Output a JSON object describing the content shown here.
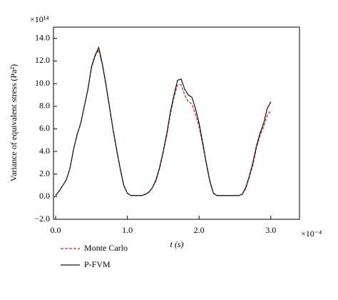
{
  "chart_data": {
    "type": "line",
    "y_label": "Variance of equivalent stress (Pa²)",
    "x_label": "t (s)",
    "y_multiplier": "×10¹⁴",
    "x_multiplier": "×10⁻⁴",
    "x": [
      0.0,
      0.05,
      0.1,
      0.15,
      0.2,
      0.25,
      0.3,
      0.35,
      0.4,
      0.45,
      0.5,
      0.55,
      0.6,
      0.65,
      0.7,
      0.75,
      0.8,
      0.85,
      0.9,
      0.95,
      1.0,
      1.05,
      1.1,
      1.15,
      1.2,
      1.25,
      1.3,
      1.35,
      1.4,
      1.45,
      1.5,
      1.55,
      1.6,
      1.65,
      1.7,
      1.75,
      1.8,
      1.85,
      1.9,
      1.95,
      2.0,
      2.05,
      2.1,
      2.15,
      2.2,
      2.25,
      2.3,
      2.35,
      2.4,
      2.45,
      2.5,
      2.55,
      2.6,
      2.65,
      2.7,
      2.75,
      2.8,
      2.85,
      2.9,
      2.95,
      3.0
    ],
    "series": [
      {
        "name": "Monte Carlo",
        "color": "#e8191c",
        "dash": true,
        "values": [
          0.1,
          0.5,
          1.0,
          1.5,
          2.5,
          4.2,
          5.5,
          6.5,
          8.0,
          9.5,
          11.4,
          12.4,
          13.0,
          11.7,
          9.9,
          7.9,
          5.9,
          4.1,
          2.4,
          1.0,
          0.3,
          0.1,
          0.1,
          0.1,
          0.1,
          0.2,
          0.4,
          0.8,
          1.4,
          2.5,
          3.9,
          5.4,
          7.3,
          8.8,
          9.9,
          9.9,
          9.0,
          8.4,
          8.2,
          7.3,
          6.2,
          4.6,
          2.9,
          1.3,
          0.3,
          0.1,
          0.1,
          0.1,
          0.1,
          0.1,
          0.1,
          0.1,
          0.2,
          0.7,
          1.7,
          2.8,
          4.3,
          5.4,
          6.2,
          7.2,
          7.6
        ]
      },
      {
        "name": "P-FVM",
        "color": "#111111",
        "dash": false,
        "values": [
          0.1,
          0.5,
          1.0,
          1.5,
          2.5,
          4.2,
          5.5,
          6.5,
          8.0,
          9.5,
          11.5,
          12.5,
          13.2,
          11.8,
          10.0,
          8.0,
          6.0,
          4.2,
          2.5,
          1.0,
          0.3,
          0.1,
          0.1,
          0.1,
          0.1,
          0.2,
          0.4,
          0.8,
          1.5,
          2.6,
          4.0,
          5.6,
          7.5,
          9.0,
          10.3,
          10.4,
          9.5,
          9.0,
          8.8,
          7.8,
          6.5,
          4.8,
          3.0,
          1.4,
          0.3,
          0.1,
          0.1,
          0.1,
          0.1,
          0.1,
          0.1,
          0.1,
          0.2,
          0.8,
          1.8,
          3.0,
          4.5,
          5.6,
          6.5,
          7.8,
          8.4
        ]
      }
    ],
    "xlim": [
      -0.03,
      3.4
    ],
    "ylim": [
      -2,
      15
    ],
    "xticks": [
      {
        "value": 0,
        "label": "0.0"
      },
      {
        "value": 1,
        "label": "1.0"
      },
      {
        "value": 2,
        "label": "2.0"
      },
      {
        "value": 3,
        "label": "3.0"
      }
    ],
    "yticks": [
      {
        "value": -2,
        "label": "−2.0"
      },
      {
        "value": 0,
        "label": "0.0"
      },
      {
        "value": 2,
        "label": "2.0"
      },
      {
        "value": 4,
        "label": "4.0"
      },
      {
        "value": 6,
        "label": "6.0"
      },
      {
        "value": 8,
        "label": "8.0"
      },
      {
        "value": 10,
        "label": "10.0"
      },
      {
        "value": 12,
        "label": "12.0"
      },
      {
        "value": 14,
        "label": "14.0"
      }
    ],
    "legend": "bottom-left"
  }
}
